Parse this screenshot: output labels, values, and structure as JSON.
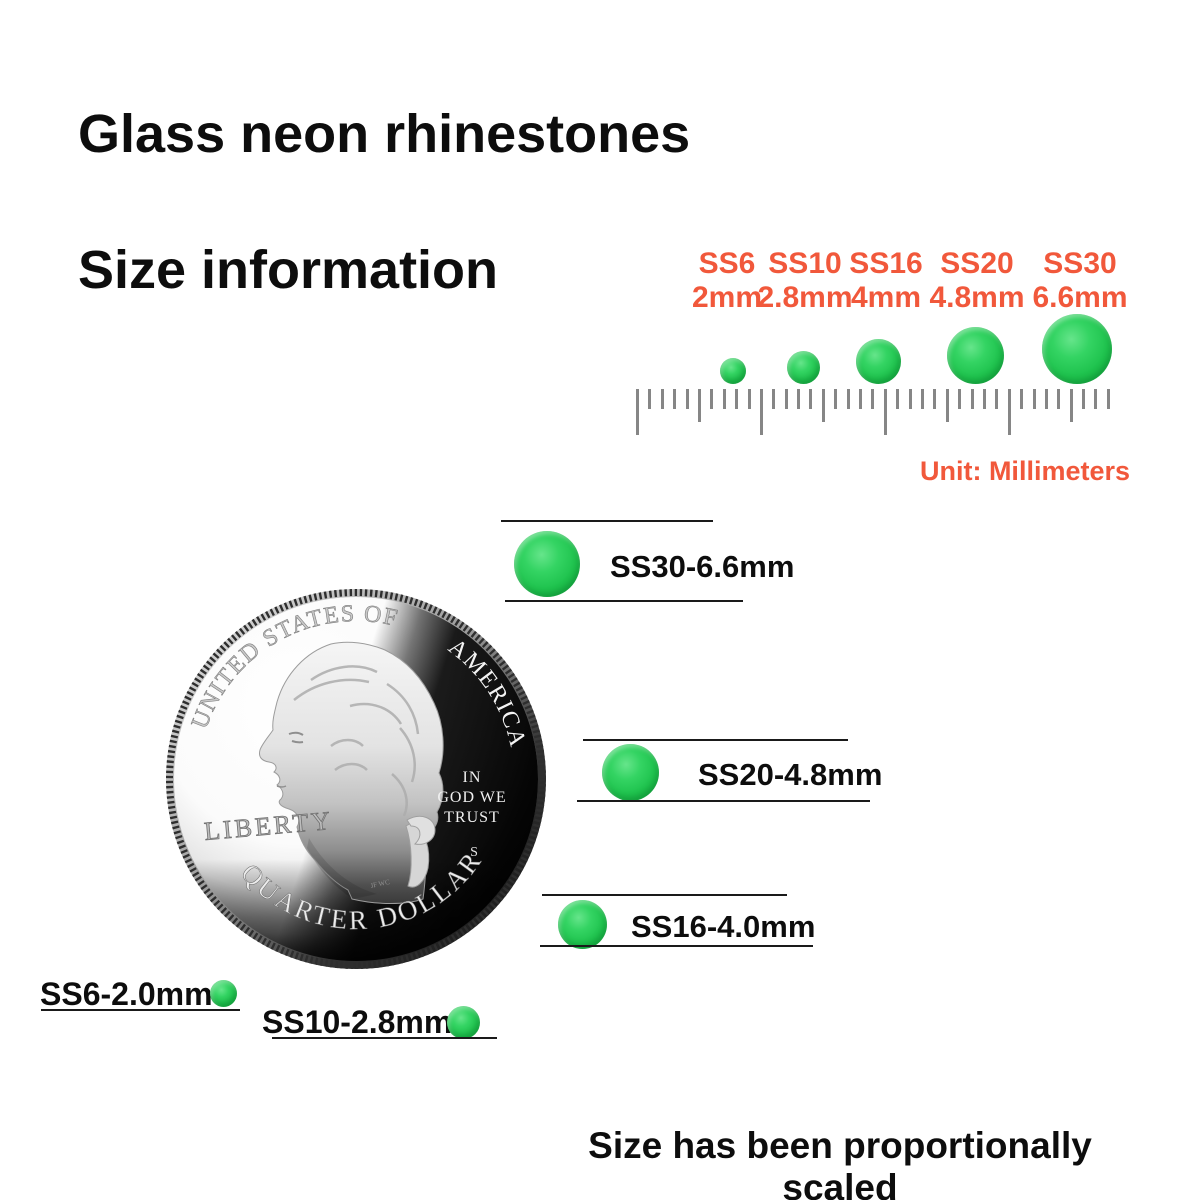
{
  "header": {
    "title_line1": "Glass neon rhinestones",
    "title_line2": "Size information"
  },
  "size_chart": {
    "unit_label": "Unit: Millimeters",
    "columns": [
      {
        "code": "SS6",
        "size": "2mm"
      },
      {
        "code": "SS10",
        "size": "2.8mm"
      },
      {
        "code": "SS16",
        "size": "4mm"
      },
      {
        "code": "SS20",
        "size": "4.8mm"
      },
      {
        "code": "SS30",
        "size": "6.6mm"
      }
    ]
  },
  "ruler": {
    "tick_count": 39
  },
  "coin": {
    "top_arc_left": "UNITED STATES OF",
    "top_arc_right": "AMERICA",
    "liberty": "LIBERTY",
    "motto": [
      "IN",
      "GOD WE",
      "TRUST"
    ],
    "mint_mark": "S",
    "bottom_arc": "QUARTER DOLLAR",
    "designer_initials": "JF WC"
  },
  "comparison": {
    "rows": [
      {
        "label": "SS30-6.6mm"
      },
      {
        "label": "SS20-4.8mm"
      },
      {
        "label": "SS16-4.0mm"
      },
      {
        "label": "SS6-2.0mm"
      },
      {
        "label": "SS10-2.8mm"
      }
    ]
  },
  "footer": {
    "note": "Size has been proportionally scaled"
  },
  "colors": {
    "accent_orange": "#F1583B",
    "stone_green": "#1EC24D",
    "stone_green_highlight": "#66E58B",
    "ruler_gray": "#868686",
    "text_black": "#0D0D0D"
  }
}
